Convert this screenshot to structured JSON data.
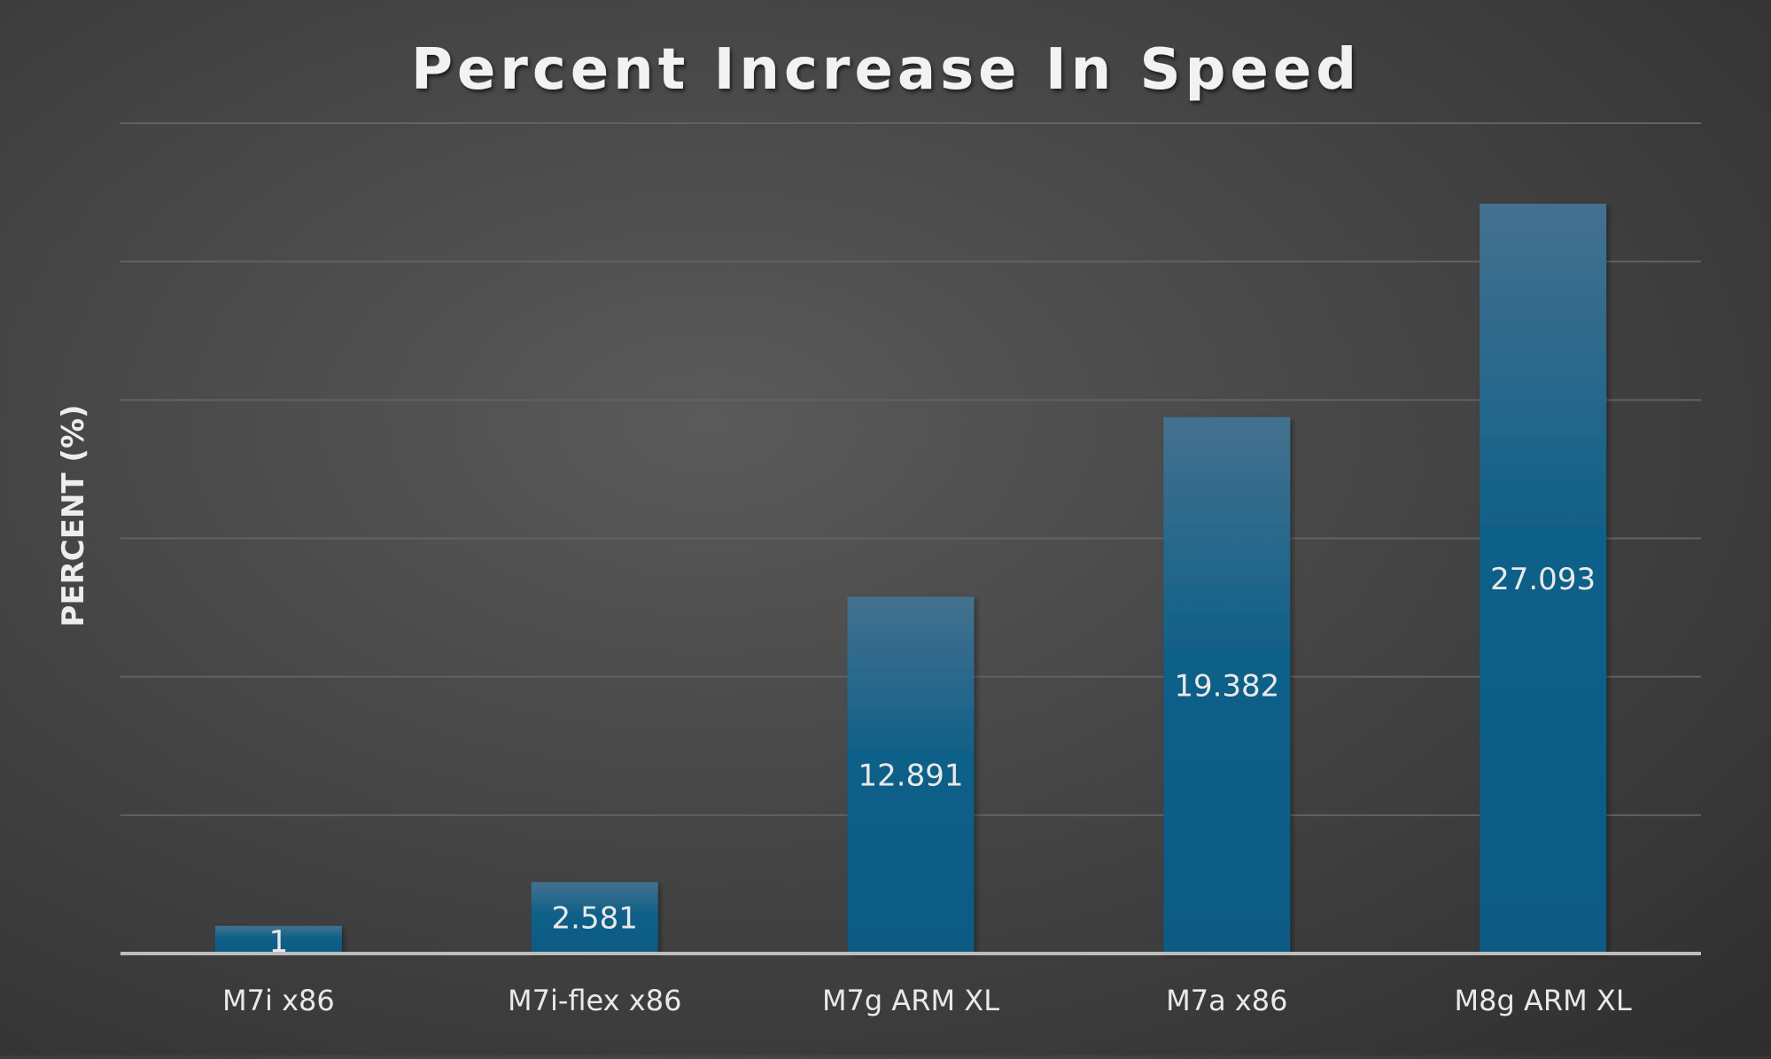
{
  "chart_data": {
    "type": "bar",
    "title": "Percent Increase In Speed",
    "ylabel": "PERCENT (%)",
    "xlabel": "",
    "categories": [
      "M7i x86",
      "M7i-flex x86",
      "M7g ARM XL",
      "M7a x86",
      "M8g ARM XL"
    ],
    "values": [
      1,
      2.581,
      12.891,
      19.382,
      27.093
    ],
    "ylim": [
      0,
      30
    ],
    "grid": true,
    "legend": "none",
    "colors": {
      "bar_top": "#44718f",
      "bar_bottom": "#0b5a84",
      "text": "#e9e9e9",
      "gridline": "#626262",
      "axis": "#bdbdbd"
    }
  }
}
